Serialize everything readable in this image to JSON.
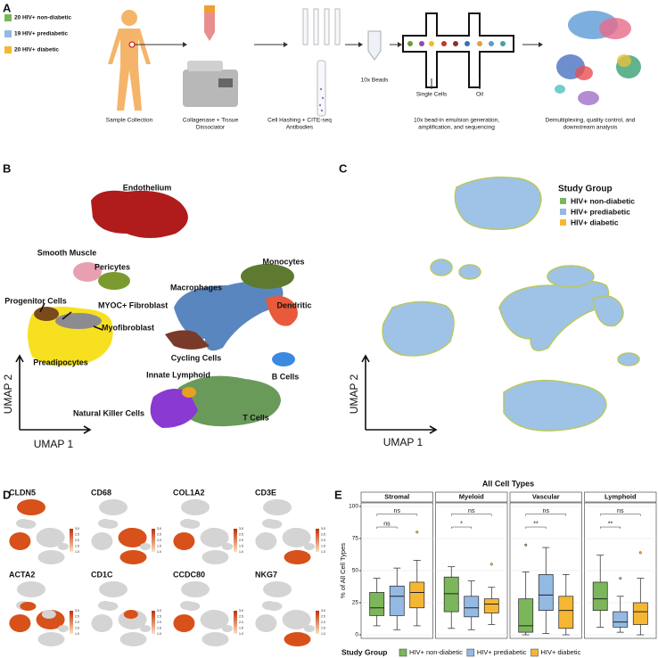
{
  "panel_a": {
    "letter": "A",
    "groups": [
      "20 HIV+ non-diabetic",
      "19 HIV+ prediabetic",
      "20 HIV+ diabetic"
    ],
    "steps": [
      [
        "Sample Collection"
      ],
      [
        "Collagenase + Tissue",
        "Dissociator"
      ],
      [
        "Cell Hashing + CITE-seq",
        "Antibodies"
      ],
      [
        "10x bead-in emulsion generation,",
        "amplification, and sequencing"
      ],
      [
        "Demultiplexing, quality control, and",
        "downstream analysis"
      ]
    ],
    "beads": "10x Beads",
    "single_cells": "Single Cells",
    "oil": "Oil"
  },
  "panel_b": {
    "letter": "B",
    "labels": [
      "Endothelium",
      "Smooth Muscle",
      "Pericytes",
      "Progenitor Cells",
      "MYOC+ Fibroblast",
      "Myofibroblast",
      "Preadipocytes",
      "Macrophages",
      "Monocytes",
      "Dendritic",
      "Cycling Cells",
      "B Cells",
      "Innate Lymphoid",
      "Natural Killer Cells",
      "T Cells"
    ],
    "x_axis": "UMAP 1",
    "y_axis": "UMAP 2"
  },
  "panel_c": {
    "letter": "C",
    "legend_title": "Study Group",
    "legend": [
      "HIV+ non-diabetic",
      "HIV+ prediabetic",
      "HIV+ diabetic"
    ],
    "x_axis": "UMAP 1",
    "y_axis": "UMAP 2"
  },
  "panel_d": {
    "letter": "D",
    "genes": [
      "CLDN5",
      "CD68",
      "COL1A2",
      "CD3E",
      "ACTA2",
      "CD1C",
      "CCDC80",
      "NKG7"
    ],
    "colorbar_ticks": [
      "1.0",
      "1.5",
      "2.0",
      "2.5",
      "3.0"
    ]
  },
  "chart_data": {
    "type": "box",
    "letter": "E",
    "title": "All Cell Types",
    "ylabel": "% of All Cell Types",
    "legend_title": "Study Group",
    "categories": [
      "Stromal",
      "Myeloid",
      "Vascular",
      "Lymphoid"
    ],
    "ylim": [
      0,
      100
    ],
    "yticks": [
      0,
      25,
      50,
      75,
      100
    ],
    "grid": true,
    "series": [
      {
        "name": "HIV+ non-diabetic",
        "color": "#7cb65b",
        "min": [
          7,
          5,
          0,
          6
        ],
        "q1": [
          15,
          18,
          2,
          19
        ],
        "median": [
          21,
          32,
          7,
          28
        ],
        "q3": [
          33,
          45,
          28,
          41
        ],
        "max": [
          44,
          53,
          49,
          62
        ],
        "outliers": [
          [],
          [],
          [
            70
          ],
          []
        ]
      },
      {
        "name": "HIV+ prediabetic",
        "color": "#94b9e3",
        "min": [
          4,
          4,
          1,
          2
        ],
        "q1": [
          15,
          14,
          19,
          6
        ],
        "median": [
          30,
          21,
          31,
          10
        ],
        "q3": [
          38,
          30,
          47,
          18
        ],
        "max": [
          52,
          42,
          68,
          30
        ],
        "outliers": [
          [],
          [],
          [],
          [
            44
          ]
        ]
      },
      {
        "name": "HIV+ diabetic",
        "color": "#f5b733",
        "min": [
          7,
          8,
          0,
          0
        ],
        "q1": [
          21,
          17,
          5,
          8
        ],
        "median": [
          33,
          24,
          19,
          18
        ],
        "q3": [
          41,
          28,
          30,
          25
        ],
        "max": [
          58,
          37,
          47,
          44
        ],
        "outliers": [
          [
            80
          ],
          [
            55
          ],
          [],
          [
            64
          ]
        ]
      }
    ],
    "annotations": [
      [
        "ns",
        "ns"
      ],
      [
        "*",
        "ns"
      ],
      [
        "**",
        "ns"
      ],
      [
        "**",
        "ns"
      ]
    ]
  }
}
